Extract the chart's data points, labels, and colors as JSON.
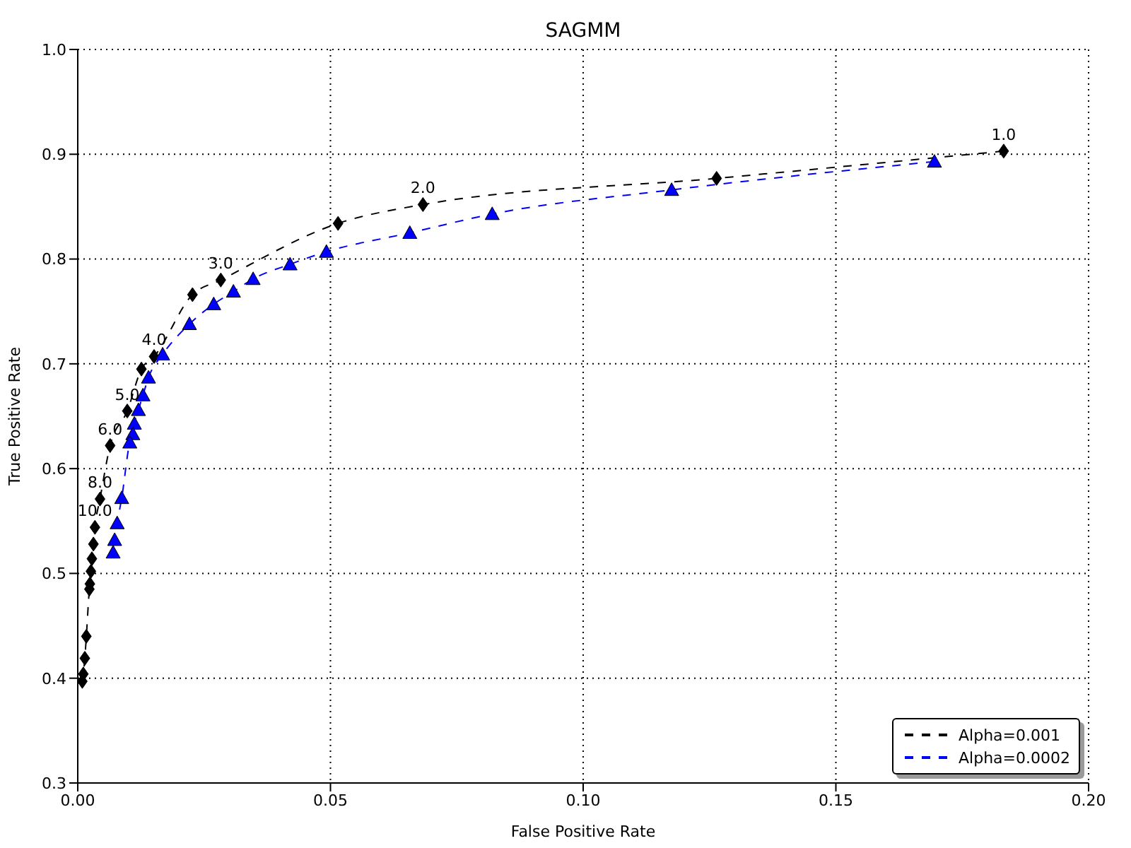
{
  "chart_data": {
    "type": "line",
    "title": "SAGMM",
    "xlabel": "False Positive Rate",
    "ylabel": "True Positive Rate",
    "xlim": [
      0,
      0.2
    ],
    "ylim": [
      0.3,
      1.0
    ],
    "xticks": [
      {
        "value": 0,
        "label": "0.00"
      },
      {
        "value": 0.05,
        "label": "0.05"
      },
      {
        "value": 0.1,
        "label": "0.10"
      },
      {
        "value": 0.15,
        "label": "0.15"
      },
      {
        "value": 0.2,
        "label": "0.20"
      }
    ],
    "yticks": [
      {
        "value": 0.3,
        "label": "0.3"
      },
      {
        "value": 0.4,
        "label": "0.4"
      },
      {
        "value": 0.5,
        "label": "0.5"
      },
      {
        "value": 0.6,
        "label": "0.6"
      },
      {
        "value": 0.7,
        "label": "0.7"
      },
      {
        "value": 0.8,
        "label": "0.8"
      },
      {
        "value": 0.9,
        "label": "0.9"
      },
      {
        "value": 1.0,
        "label": "1.0"
      }
    ],
    "grid": true,
    "legend": "bottom right",
    "line_style": "dashed",
    "series": [
      {
        "name": "Alpha=0.001",
        "color": "#000000",
        "marker": "diamond",
        "x": [
          0.1832,
          0.1264,
          0.0683,
          0.0515,
          0.0283,
          0.0227,
          0.0151,
          0.0126,
          0.0098,
          0.0064,
          0.0044,
          0.0034,
          0.0031,
          0.0028,
          0.0026,
          0.0024,
          0.0023,
          0.0017,
          0.0014,
          0.0011,
          0.0009
        ],
        "values": [
          0.903,
          0.877,
          0.852,
          0.834,
          0.78,
          0.766,
          0.707,
          0.695,
          0.655,
          0.622,
          0.571,
          0.544,
          0.528,
          0.514,
          0.502,
          0.49,
          0.485,
          0.44,
          0.419,
          0.404,
          0.397
        ]
      },
      {
        "name": "Alpha=0.0002",
        "color": "#0000ff",
        "marker": "triangle",
        "x": [
          0.1695,
          0.1175,
          0.082,
          0.0657,
          0.0492,
          0.042,
          0.0347,
          0.0308,
          0.0269,
          0.0221,
          0.0168,
          0.014,
          0.0129,
          0.012,
          0.0112,
          0.0109,
          0.0103,
          0.0087,
          0.0078,
          0.0073,
          0.007
        ],
        "values": [
          0.893,
          0.866,
          0.843,
          0.825,
          0.807,
          0.795,
          0.781,
          0.769,
          0.757,
          0.738,
          0.709,
          0.687,
          0.67,
          0.656,
          0.643,
          0.633,
          0.625,
          0.572,
          0.548,
          0.532,
          0.52
        ]
      }
    ],
    "annotations": [
      {
        "text": "1.0",
        "x": 0.1832,
        "y": 0.903
      },
      {
        "text": "2.0",
        "x": 0.0683,
        "y": 0.852
      },
      {
        "text": "3.0",
        "x": 0.0283,
        "y": 0.78
      },
      {
        "text": "4.0",
        "x": 0.0151,
        "y": 0.707
      },
      {
        "text": "5.0",
        "x": 0.0098,
        "y": 0.655
      },
      {
        "text": "6.0",
        "x": 0.0064,
        "y": 0.622
      },
      {
        "text": "8.0",
        "x": 0.0044,
        "y": 0.571
      },
      {
        "text": "10.0",
        "x": 0.0034,
        "y": 0.544
      }
    ]
  }
}
